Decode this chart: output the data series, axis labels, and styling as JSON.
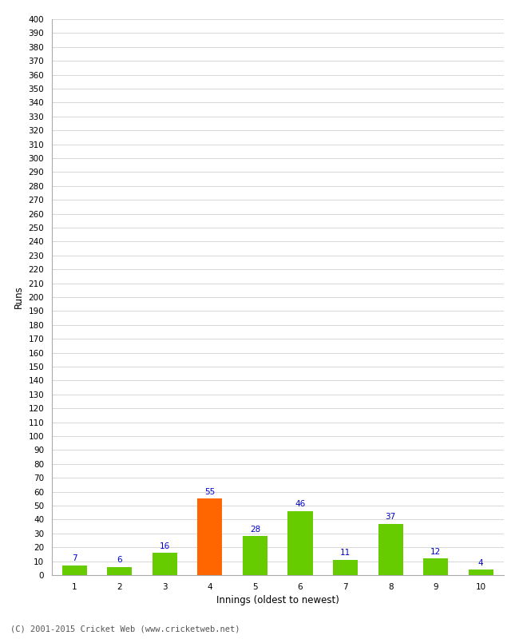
{
  "categories": [
    "1",
    "2",
    "3",
    "4",
    "5",
    "6",
    "7",
    "8",
    "9",
    "10"
  ],
  "values": [
    7,
    6,
    16,
    55,
    28,
    46,
    11,
    37,
    12,
    4
  ],
  "bar_colors": [
    "#66cc00",
    "#66cc00",
    "#66cc00",
    "#ff6600",
    "#66cc00",
    "#66cc00",
    "#66cc00",
    "#66cc00",
    "#66cc00",
    "#66cc00"
  ],
  "xlabel": "Innings (oldest to newest)",
  "ylabel": "Runs",
  "ylim": [
    0,
    400
  ],
  "ytick_step": 10,
  "background_color": "#ffffff",
  "grid_color": "#c8c8c8",
  "label_color": "#0000cc",
  "label_fontsize": 7.5,
  "axis_fontsize": 8.5,
  "tick_fontsize": 7.5,
  "footer": "(C) 2001-2015 Cricket Web (www.cricketweb.net)",
  "footer_fontsize": 7.5,
  "bar_width": 0.55
}
